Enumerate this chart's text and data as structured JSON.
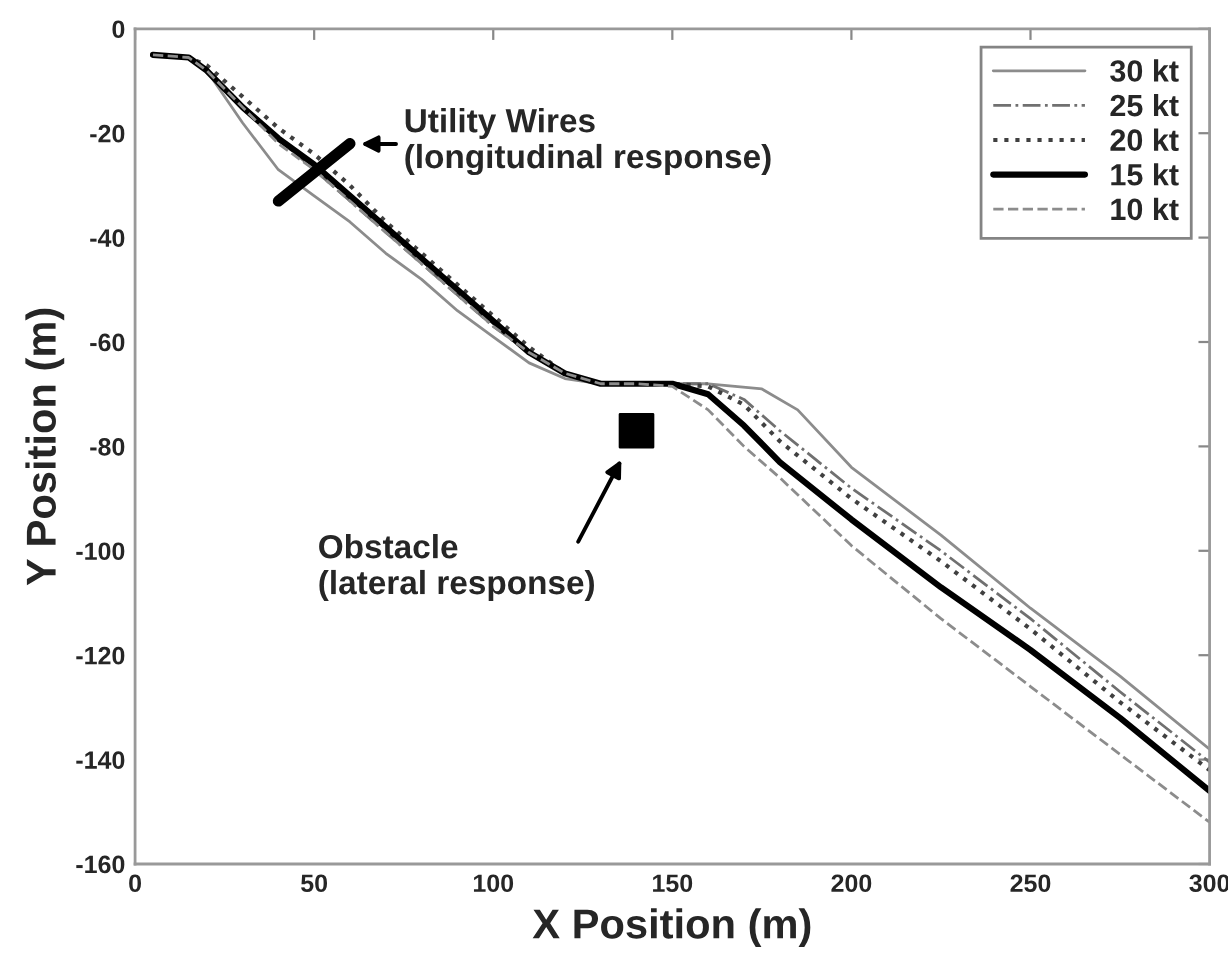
{
  "chart_data": {
    "type": "line",
    "xlabel": "X Position (m)",
    "ylabel": "Y Position (m)",
    "xlim": [
      0,
      300
    ],
    "ylim": [
      -160,
      0
    ],
    "xticks": [
      0,
      50,
      100,
      150,
      200,
      250,
      300
    ],
    "yticks": [
      -160,
      -140,
      -120,
      -100,
      -80,
      -60,
      -40,
      -20,
      0
    ],
    "grid": false,
    "legend": "top right",
    "marker": "none",
    "series": [
      {
        "name": "30 kt",
        "color": "#8c8c8c",
        "line_style": "solid",
        "x": [
          5,
          15,
          20,
          30,
          40,
          50,
          60,
          70,
          80,
          90,
          100,
          110,
          120,
          130,
          140,
          150,
          160,
          175,
          185,
          200,
          225,
          250,
          275,
          300
        ],
        "values": [
          -5,
          -5.5,
          -8,
          -18,
          -27,
          -32,
          -37,
          -43,
          -48,
          -54,
          -59,
          -64,
          -67,
          -68,
          -68,
          -68,
          -68,
          -69,
          -73,
          -84,
          -97,
          -111,
          -124,
          -138
        ]
      },
      {
        "name": "25 kt",
        "color": "#707070",
        "line_style": "dashdot",
        "x": [
          5,
          15,
          20,
          30,
          40,
          50,
          60,
          70,
          80,
          90,
          100,
          110,
          120,
          130,
          140,
          150,
          160,
          170,
          180,
          200,
          225,
          250,
          275,
          300
        ],
        "values": [
          -5,
          -5.5,
          -8,
          -15,
          -21,
          -27,
          -33,
          -39,
          -45,
          -51,
          -57,
          -62,
          -66,
          -68,
          -68,
          -68,
          -68,
          -71,
          -77,
          -88,
          -100,
          -113,
          -127,
          -140.5
        ]
      },
      {
        "name": "20 kt",
        "color": "#404040",
        "line_style": "dotted",
        "x": [
          5,
          15,
          20,
          30,
          40,
          50,
          60,
          70,
          80,
          90,
          100,
          110,
          120,
          130,
          140,
          150,
          160,
          170,
          180,
          200,
          225,
          250,
          275,
          300
        ],
        "values": [
          -5,
          -5.5,
          -7,
          -13,
          -19,
          -24,
          -30,
          -37,
          -43,
          -49,
          -55,
          -61,
          -66,
          -68,
          -68,
          -68,
          -68.5,
          -72,
          -79,
          -90,
          -102,
          -115,
          -129,
          -142
        ]
      },
      {
        "name": "15 kt",
        "color": "#000000",
        "line_style": "solid",
        "x": [
          5,
          15,
          20,
          30,
          40,
          50,
          60,
          70,
          80,
          90,
          100,
          110,
          120,
          130,
          140,
          150,
          160,
          170,
          180,
          200,
          225,
          250,
          275,
          300
        ],
        "values": [
          -5,
          -5.5,
          -8,
          -15,
          -21,
          -26,
          -32,
          -38,
          -44,
          -50,
          -56,
          -62,
          -66,
          -68,
          -68,
          -68,
          -70,
          -76,
          -83,
          -94,
          -107,
          -119,
          -132,
          -146
        ]
      },
      {
        "name": "10 kt",
        "color": "#8c8c8c",
        "line_style": "dashed",
        "x": [
          5,
          15,
          20,
          30,
          40,
          50,
          60,
          70,
          80,
          90,
          100,
          110,
          120,
          130,
          140,
          150,
          160,
          170,
          180,
          200,
          225,
          250,
          275,
          300
        ],
        "values": [
          -5,
          -5.5,
          -8,
          -15,
          -22,
          -27,
          -33,
          -39,
          -45,
          -51,
          -57,
          -62,
          -66,
          -68,
          -68,
          -68.5,
          -73,
          -80,
          -86,
          -99,
          -113,
          -126,
          -139,
          -152
        ]
      },
      {
        "type": "line",
        "color": "#000000",
        "line_style": "solid",
        "x": [
          40,
          60
        ],
        "values": [
          -33,
          -22
        ]
      },
      {
        "type": "scatter",
        "color": "#000000",
        "marker": "square",
        "x": [
          140
        ],
        "values": [
          -77
        ]
      }
    ],
    "annotations": [
      "Utility Wires\n(longitudinal response)",
      "Obstacle\n(lateral response)"
    ]
  }
}
